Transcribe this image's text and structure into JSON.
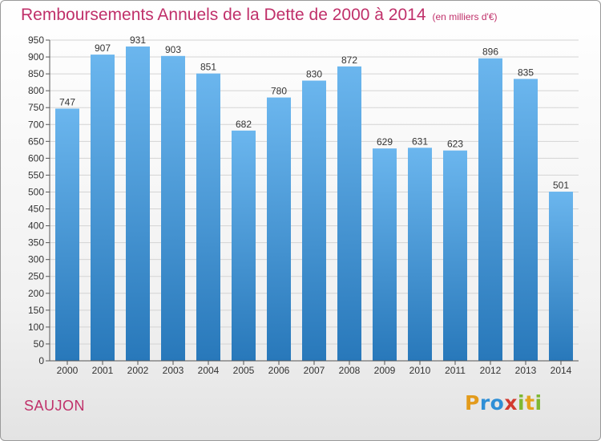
{
  "title": "Remboursements Annuels de la Dette de 2000 à 2014",
  "unit_note": "(en milliers d'€)",
  "commune": "SAUJON",
  "logo": {
    "text": "Proxiti",
    "letters": [
      {
        "char": "P",
        "color": "#e39b1b"
      },
      {
        "char": "r",
        "color": "#2f8fd6"
      },
      {
        "char": "o",
        "color": "#2f8fd6"
      },
      {
        "char": "x",
        "color": "#d23a2f"
      },
      {
        "char": "i",
        "color": "#7fb832"
      },
      {
        "char": "t",
        "color": "#e3a31b"
      },
      {
        "char": "i",
        "color": "#7fb832"
      }
    ]
  },
  "colors": {
    "bar_top": "#6bb6ee",
    "bar_bottom": "#2878ba",
    "grid": "#d4d4d4",
    "axis": "#555555",
    "title": "#c0306a"
  },
  "chart_data": {
    "type": "bar",
    "categories": [
      "2000",
      "2001",
      "2002",
      "2003",
      "2004",
      "2005",
      "2006",
      "2007",
      "2008",
      "2009",
      "2010",
      "2011",
      "2012",
      "2013",
      "2014"
    ],
    "values": [
      747,
      907,
      931,
      903,
      851,
      682,
      780,
      830,
      872,
      629,
      631,
      623,
      896,
      835,
      501
    ],
    "title": "Remboursements Annuels de la Dette de 2000 à 2014",
    "xlabel": "",
    "ylabel": "",
    "ylim": [
      0,
      950
    ],
    "yticks": [
      0,
      50,
      100,
      150,
      200,
      250,
      300,
      350,
      400,
      450,
      500,
      550,
      600,
      650,
      700,
      750,
      800,
      850,
      900,
      950
    ],
    "grid": true,
    "legend": "none"
  }
}
